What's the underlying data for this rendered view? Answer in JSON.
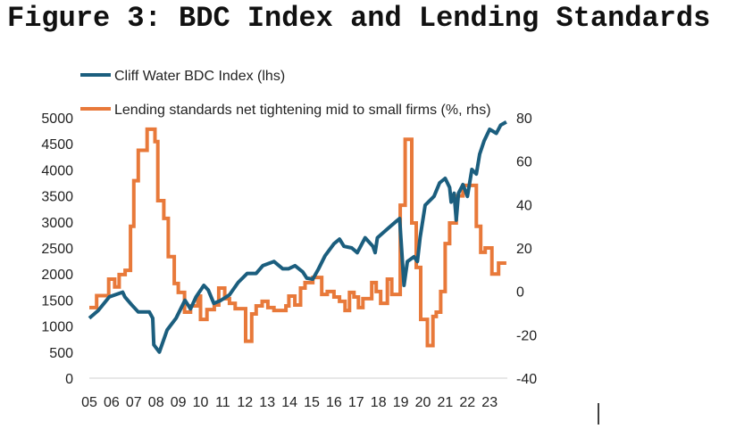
{
  "title": "Figure 3: BDC Index and Lending Standards",
  "chart_data": {
    "type": "line",
    "title": "Figure 3: BDC Index and Lending Standards",
    "legend_position": "top",
    "grid": false,
    "x_ticks": [
      "05",
      "06",
      "07",
      "08",
      "09",
      "10",
      "11",
      "12",
      "13",
      "14",
      "15",
      "16",
      "17",
      "18",
      "19",
      "20",
      "21",
      "22",
      "23"
    ],
    "y_left": {
      "ylim": [
        0,
        5000
      ],
      "ticks": [
        "5000",
        "4500",
        "4000",
        "3500",
        "3000",
        "2500",
        "2000",
        "1500",
        "1000",
        "500",
        "0"
      ]
    },
    "y_right": {
      "ylim": [
        -40,
        80
      ],
      "ticks": [
        "80",
        "60",
        "40",
        "20",
        "0",
        "-20",
        "-40"
      ]
    },
    "series": [
      {
        "name": "Cliff Water BDC Index (lhs)",
        "axis": "left",
        "color": "#1b5e7e",
        "points": [
          [
            2005.0,
            1150
          ],
          [
            2005.4,
            1300
          ],
          [
            2005.9,
            1560
          ],
          [
            2006.5,
            1650
          ],
          [
            2006.6,
            1560
          ],
          [
            2006.9,
            1410
          ],
          [
            2007.2,
            1270
          ],
          [
            2007.7,
            1270
          ],
          [
            2007.85,
            1150
          ],
          [
            2007.9,
            640
          ],
          [
            2008.15,
            500
          ],
          [
            2008.5,
            925
          ],
          [
            2008.9,
            1150
          ],
          [
            2009.3,
            1495
          ],
          [
            2009.55,
            1330
          ],
          [
            2009.8,
            1560
          ],
          [
            2010.15,
            1780
          ],
          [
            2010.35,
            1690
          ],
          [
            2010.6,
            1435
          ],
          [
            2010.9,
            1490
          ],
          [
            2011.3,
            1600
          ],
          [
            2011.7,
            1840
          ],
          [
            2012.1,
            2010
          ],
          [
            2012.5,
            2010
          ],
          [
            2012.8,
            2160
          ],
          [
            2013.3,
            2240
          ],
          [
            2013.7,
            2100
          ],
          [
            2013.95,
            2100
          ],
          [
            2014.25,
            2160
          ],
          [
            2014.6,
            2040
          ],
          [
            2014.78,
            1920
          ],
          [
            2015.05,
            1900
          ],
          [
            2015.3,
            2095
          ],
          [
            2015.6,
            2350
          ],
          [
            2016.0,
            2580
          ],
          [
            2016.25,
            2670
          ],
          [
            2016.45,
            2530
          ],
          [
            2016.8,
            2500
          ],
          [
            2017.05,
            2410
          ],
          [
            2017.4,
            2695
          ],
          [
            2017.75,
            2530
          ],
          [
            2017.85,
            2410
          ],
          [
            2017.95,
            2695
          ],
          [
            2018.4,
            2865
          ],
          [
            2018.8,
            3010
          ],
          [
            2018.95,
            3065
          ],
          [
            2019.15,
            1780
          ],
          [
            2019.3,
            2240
          ],
          [
            2019.6,
            2330
          ],
          [
            2019.75,
            2240
          ],
          [
            2019.87,
            2695
          ],
          [
            2020.1,
            3320
          ],
          [
            2020.5,
            3490
          ],
          [
            2020.75,
            3750
          ],
          [
            2021.0,
            3835
          ],
          [
            2021.2,
            3660
          ],
          [
            2021.27,
            3380
          ],
          [
            2021.4,
            3550
          ],
          [
            2021.5,
            3035
          ],
          [
            2021.6,
            3550
          ],
          [
            2021.8,
            3715
          ],
          [
            2022.0,
            3490
          ],
          [
            2022.2,
            4006
          ],
          [
            2022.4,
            3920
          ],
          [
            2022.55,
            4300
          ],
          [
            2022.75,
            4554
          ],
          [
            2023.0,
            4777
          ],
          [
            2023.3,
            4700
          ],
          [
            2023.5,
            4860
          ],
          [
            2023.75,
            4920
          ]
        ]
      },
      {
        "name": "Lending standards net tightening mid to small firms (%, rhs)",
        "axis": "right",
        "color": "#e8793a",
        "points": [
          [
            2005.0,
            -7.5
          ],
          [
            2005.33,
            -2
          ],
          [
            2005.87,
            5.6
          ],
          [
            2006.14,
            2
          ],
          [
            2006.34,
            7.7
          ],
          [
            2006.61,
            9.7
          ],
          [
            2006.85,
            30
          ],
          [
            2007.0,
            51
          ],
          [
            2007.2,
            65
          ],
          [
            2007.6,
            74.7
          ],
          [
            2007.95,
            69
          ],
          [
            2008.08,
            41.8
          ],
          [
            2008.35,
            33.6
          ],
          [
            2008.55,
            16
          ],
          [
            2008.82,
            3.6
          ],
          [
            2009.0,
            -0.5
          ],
          [
            2009.28,
            -9.6
          ],
          [
            2009.55,
            -6.7
          ],
          [
            2009.88,
            -2.2
          ],
          [
            2010.0,
            -12.9
          ],
          [
            2010.29,
            -8.4
          ],
          [
            2010.62,
            -6.3
          ],
          [
            2010.82,
            1.5
          ],
          [
            2011.09,
            -3.4
          ],
          [
            2011.3,
            -5.5
          ],
          [
            2011.56,
            -8
          ],
          [
            2012.03,
            -23
          ],
          [
            2012.3,
            -10.4
          ],
          [
            2012.5,
            -6.7
          ],
          [
            2012.77,
            -4.6
          ],
          [
            2013.03,
            -7.5
          ],
          [
            2013.3,
            -8.8
          ],
          [
            2013.84,
            -6.7
          ],
          [
            2013.97,
            -2.2
          ],
          [
            2014.24,
            -6.3
          ],
          [
            2014.5,
            1.5
          ],
          [
            2014.7,
            4
          ],
          [
            2015.05,
            6.4
          ],
          [
            2015.45,
            -1.4
          ],
          [
            2015.7,
            -0.1
          ],
          [
            2016.0,
            -2.6
          ],
          [
            2016.25,
            -4.6
          ],
          [
            2016.5,
            -8.8
          ],
          [
            2016.7,
            -0.5
          ],
          [
            2016.9,
            -2.6
          ],
          [
            2017.1,
            -7.5
          ],
          [
            2017.3,
            -3.4
          ],
          [
            2017.7,
            4
          ],
          [
            2017.9,
            -0.1
          ],
          [
            2018.1,
            -5.5
          ],
          [
            2018.4,
            5.6
          ],
          [
            2018.6,
            -1.4
          ],
          [
            2018.98,
            39.7
          ],
          [
            2019.2,
            70
          ],
          [
            2019.5,
            31.5
          ],
          [
            2019.7,
            11
          ],
          [
            2019.9,
            -12.9
          ],
          [
            2020.2,
            -25
          ],
          [
            2020.45,
            -11.6
          ],
          [
            2020.6,
            -9.6
          ],
          [
            2020.8,
            -0.1
          ],
          [
            2021.0,
            22
          ],
          [
            2021.2,
            31.5
          ],
          [
            2021.5,
            44
          ],
          [
            2021.8,
            48.8
          ],
          [
            2022.4,
            30
          ],
          [
            2022.6,
            18
          ],
          [
            2022.8,
            20
          ],
          [
            2023.1,
            8
          ],
          [
            2023.4,
            13
          ],
          [
            2023.75,
            13
          ]
        ]
      }
    ]
  }
}
